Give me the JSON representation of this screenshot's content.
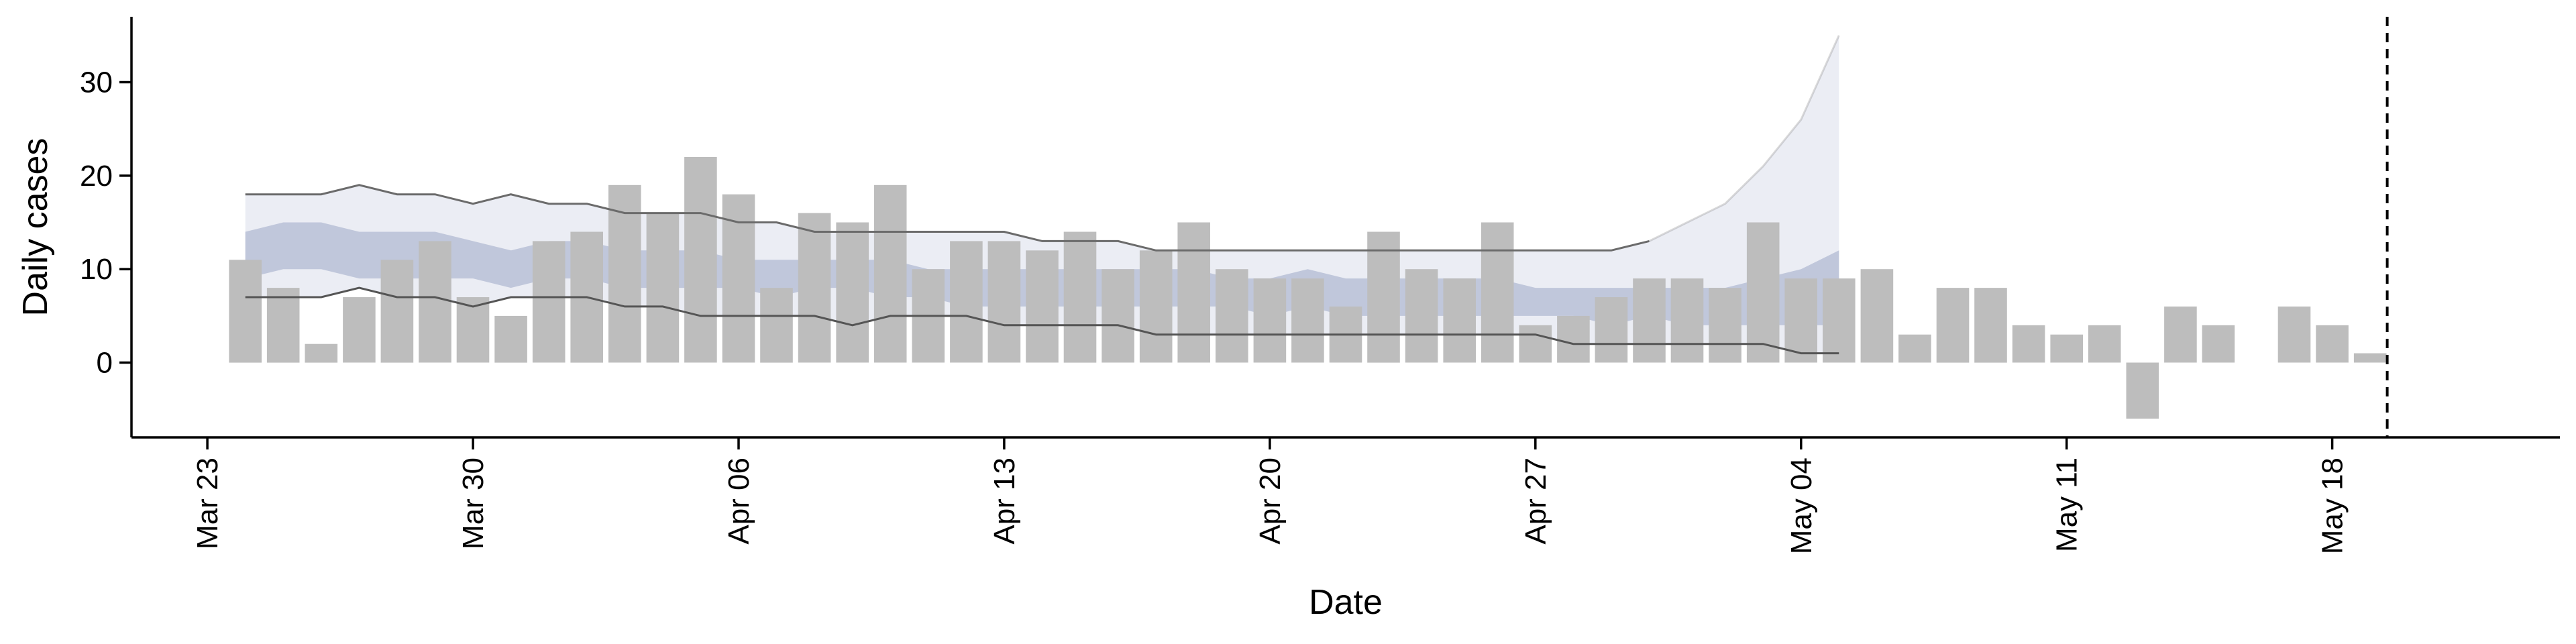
{
  "chart_data": {
    "type": "bar",
    "xlabel": "Date",
    "ylabel": "Daily cases",
    "ylim": [
      -8,
      37
    ],
    "xlim": [
      "2020-03-21",
      "2020-05-24"
    ],
    "yticks": [
      0,
      10,
      20,
      30
    ],
    "xticks": [
      {
        "date": "2020-03-23",
        "label": "Mar 23"
      },
      {
        "date": "2020-03-30",
        "label": "Mar 30"
      },
      {
        "date": "2020-04-06",
        "label": "Apr 06"
      },
      {
        "date": "2020-04-13",
        "label": "Apr 13"
      },
      {
        "date": "2020-04-20",
        "label": "Apr 20"
      },
      {
        "date": "2020-04-27",
        "label": "Apr 27"
      },
      {
        "date": "2020-05-04",
        "label": "May 04"
      },
      {
        "date": "2020-05-11",
        "label": "May 11"
      },
      {
        "date": "2020-05-18",
        "label": "May 18"
      }
    ],
    "series": [
      {
        "kind": "bar",
        "color": "#bdbdbd",
        "points": [
          [
            "2020-03-24",
            11
          ],
          [
            "2020-03-25",
            8
          ],
          [
            "2020-03-26",
            2
          ],
          [
            "2020-03-27",
            7
          ],
          [
            "2020-03-28",
            11
          ],
          [
            "2020-03-29",
            13
          ],
          [
            "2020-03-30",
            7
          ],
          [
            "2020-03-31",
            5
          ],
          [
            "2020-04-01",
            13
          ],
          [
            "2020-04-02",
            14
          ],
          [
            "2020-04-03",
            19
          ],
          [
            "2020-04-04",
            16
          ],
          [
            "2020-04-05",
            22
          ],
          [
            "2020-04-06",
            18
          ],
          [
            "2020-04-07",
            8
          ],
          [
            "2020-04-08",
            16
          ],
          [
            "2020-04-09",
            15
          ],
          [
            "2020-04-10",
            19
          ],
          [
            "2020-04-11",
            10
          ],
          [
            "2020-04-12",
            13
          ],
          [
            "2020-04-13",
            13
          ],
          [
            "2020-04-14",
            12
          ],
          [
            "2020-04-15",
            14
          ],
          [
            "2020-04-16",
            10
          ],
          [
            "2020-04-17",
            12
          ],
          [
            "2020-04-18",
            15
          ],
          [
            "2020-04-19",
            10
          ],
          [
            "2020-04-20",
            9
          ],
          [
            "2020-04-21",
            9
          ],
          [
            "2020-04-22",
            6
          ],
          [
            "2020-04-23",
            14
          ],
          [
            "2020-04-24",
            10
          ],
          [
            "2020-04-25",
            9
          ],
          [
            "2020-04-26",
            15
          ],
          [
            "2020-04-27",
            4
          ],
          [
            "2020-04-28",
            5
          ],
          [
            "2020-04-29",
            7
          ],
          [
            "2020-04-30",
            9
          ],
          [
            "2020-05-01",
            9
          ],
          [
            "2020-05-02",
            8
          ],
          [
            "2020-05-03",
            15
          ],
          [
            "2020-05-04",
            9
          ],
          [
            "2020-05-05",
            9
          ],
          [
            "2020-05-06",
            10
          ],
          [
            "2020-05-07",
            3
          ],
          [
            "2020-05-08",
            8
          ],
          [
            "2020-05-09",
            8
          ],
          [
            "2020-05-10",
            4
          ],
          [
            "2020-05-11",
            3
          ],
          [
            "2020-05-12",
            4
          ],
          [
            "2020-05-13",
            -6
          ],
          [
            "2020-05-14",
            6
          ],
          [
            "2020-05-15",
            4
          ],
          [
            "2020-05-17",
            6
          ],
          [
            "2020-05-18",
            4
          ],
          [
            "2020-05-19",
            1
          ]
        ]
      },
      {
        "kind": "band",
        "color": "#ebedf4",
        "dates": [
          "2020-03-24",
          "2020-03-25",
          "2020-03-26",
          "2020-03-27",
          "2020-03-28",
          "2020-03-29",
          "2020-03-30",
          "2020-03-31",
          "2020-04-01",
          "2020-04-02",
          "2020-04-03",
          "2020-04-04",
          "2020-04-05",
          "2020-04-06",
          "2020-04-07",
          "2020-04-08",
          "2020-04-09",
          "2020-04-10",
          "2020-04-11",
          "2020-04-12",
          "2020-04-13",
          "2020-04-14",
          "2020-04-15",
          "2020-04-16",
          "2020-04-17",
          "2020-04-18",
          "2020-04-19",
          "2020-04-20",
          "2020-04-21",
          "2020-04-22",
          "2020-04-23",
          "2020-04-24",
          "2020-04-25",
          "2020-04-26",
          "2020-04-27",
          "2020-04-28",
          "2020-04-29",
          "2020-04-30",
          "2020-05-01",
          "2020-05-02",
          "2020-05-03",
          "2020-05-04",
          "2020-05-05"
        ],
        "upper": [
          18,
          18,
          18,
          19,
          18,
          18,
          17,
          18,
          17,
          17,
          16,
          16,
          16,
          15,
          15,
          14,
          14,
          14,
          14,
          14,
          14,
          13,
          13,
          13,
          12,
          12,
          12,
          12,
          12,
          12,
          12,
          12,
          12,
          12,
          12,
          12,
          12,
          13,
          15,
          17,
          21,
          26,
          35
        ],
        "lower": [
          7,
          7,
          7,
          8,
          7,
          7,
          6,
          7,
          7,
          7,
          6,
          6,
          5,
          5,
          5,
          5,
          4,
          5,
          5,
          5,
          4,
          4,
          4,
          4,
          3,
          3,
          3,
          3,
          3,
          3,
          3,
          3,
          3,
          3,
          3,
          2,
          2,
          2,
          2,
          2,
          2,
          1,
          1
        ]
      },
      {
        "kind": "band",
        "color": "#a7b0cb",
        "dates": [
          "2020-03-24",
          "2020-03-25",
          "2020-03-26",
          "2020-03-27",
          "2020-03-28",
          "2020-03-29",
          "2020-03-30",
          "2020-03-31",
          "2020-04-01",
          "2020-04-02",
          "2020-04-03",
          "2020-04-04",
          "2020-04-05",
          "2020-04-06",
          "2020-04-07",
          "2020-04-08",
          "2020-04-09",
          "2020-04-10",
          "2020-04-11",
          "2020-04-12",
          "2020-04-13",
          "2020-04-14",
          "2020-04-15",
          "2020-04-16",
          "2020-04-17",
          "2020-04-18",
          "2020-04-19",
          "2020-04-20",
          "2020-04-21",
          "2020-04-22",
          "2020-04-23",
          "2020-04-24",
          "2020-04-25",
          "2020-04-26",
          "2020-04-27",
          "2020-04-28",
          "2020-04-29",
          "2020-04-30",
          "2020-05-01",
          "2020-05-02",
          "2020-05-03",
          "2020-05-04",
          "2020-05-05"
        ],
        "upper": [
          14,
          15,
          15,
          14,
          14,
          14,
          13,
          12,
          13,
          13,
          12,
          12,
          12,
          11,
          11,
          11,
          11,
          11,
          10,
          10,
          10,
          10,
          10,
          10,
          10,
          10,
          9,
          9,
          10,
          9,
          9,
          9,
          9,
          9,
          8,
          8,
          8,
          8,
          8,
          8,
          9,
          10,
          12
        ],
        "lower": [
          9,
          10,
          10,
          9,
          9,
          9,
          9,
          8,
          9,
          9,
          8,
          8,
          8,
          8,
          7,
          8,
          8,
          7,
          7,
          6,
          6,
          6,
          6,
          6,
          6,
          6,
          6,
          5,
          6,
          5,
          5,
          5,
          5,
          5,
          5,
          5,
          4,
          5,
          4,
          4,
          4,
          4,
          4
        ]
      },
      {
        "kind": "vline",
        "date": "2020-05-19"
      }
    ]
  }
}
